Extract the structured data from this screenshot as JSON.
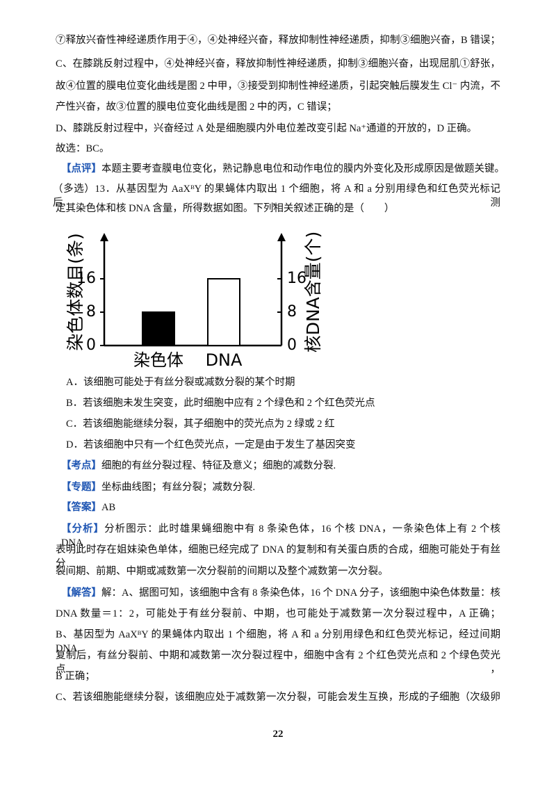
{
  "top_lines": [
    {
      "text": "⑦释放兴奋性神经递质作用于④，④处神经兴奋，释放抑制性神经递质，抑制③细胞兴奋，B 错误；"
    },
    {
      "text": "C、在膝跳反射过程中，④处神经兴奋，释放抑制性神经递质，抑制③细胞兴奋，出现屈肌①舒张，"
    },
    {
      "text": "故④位置的膜电位变化曲线是图 2 中甲，③接受到抑制性神经递质，引起突触后膜发生 Cl⁻ 内流，不"
    },
    {
      "text": "产性兴奋，故③位置的膜电位变化曲线是图 2 中的丙，C 错误；"
    },
    {
      "text": "D、膝跳反射过程中，兴奋经过 A 处是细胞膜内外电位差改变引起 Na⁺通道的开放的，D 正确。"
    },
    {
      "text": "故选：BC。"
    },
    {
      "label": "【点评】",
      "text": "本题主要考查膜电位变化，熟记静息电位和动作电位的膜内外变化及形成原因是做题关键。"
    },
    {
      "text": "（多选）13．从基因型为 AaXᴮY 的果蝇体内取出 1 个细胞，将 A 和 a 分别用绿色和红色荧光标记后，测"
    },
    {
      "text": "定其染色体和核 DNA 含量，所得数据如图。下列相关叙述正确的是（　　）"
    }
  ],
  "chart_data": {
    "type": "bar",
    "categories": [
      "染色体",
      "DNA"
    ],
    "values": [
      8,
      16
    ],
    "colors": [
      "#000000",
      "#ffffff"
    ],
    "ylabel": "染色体数目(条)",
    "y2label": "核DNA含量(个)",
    "ylim": [
      0,
      27
    ],
    "yticks": [
      0,
      8,
      16
    ],
    "y2lim": [
      0,
      27
    ],
    "y2ticks": [
      0,
      8,
      16
    ]
  },
  "bottom_lines": [
    {
      "text": "A．该细胞可能处于有丝分裂或减数分裂的某个时期"
    },
    {
      "text": "B．若该细胞未发生突变，此时细胞中应有 2 个绿色和 2 个红色荧光点"
    },
    {
      "text": "C．若该细胞能继续分裂，其子细胞中的荧光点为 2 绿或 2 红"
    },
    {
      "text": "D．若该细胞中只有一个红色荧光点，一定是由于发生了基因突变"
    },
    {
      "label": "【考点】",
      "text": "细胞的有丝分裂过程、特征及意义；细胞的减数分裂."
    },
    {
      "label": "【专题】",
      "text": "坐标曲线图；有丝分裂；减数分裂."
    },
    {
      "label": "【答案】",
      "text": "AB"
    },
    {
      "label": "【分析】",
      "text": "分析图示：此时雄果蝇细胞中有 8 条染色体，16 个核 DNA，一条染色体上有 2 个核 DNA，"
    },
    {
      "text": "表明此时存在姐妹染色单体，细胞已经完成了 DNA 的复制和有关蛋白质的合成，细胞可能处于有丝分"
    },
    {
      "text": "裂间期、前期、中期或减数第一次分裂前的间期以及整个减数第一次分裂。"
    },
    {
      "label": "【解答】",
      "text": "解：A、据图可知，该细胞中含有 8 条染色体，16 个 DNA 分子，该细胞中染色体数量：核"
    },
    {
      "text": "DNA 数量＝1：2，可能处于有丝分裂前、中期，也可能处于减数第一次分裂过程中，A 正确；"
    },
    {
      "text": "B、基因型为 AaXᴮY 的果蝇体内取出 1 个细胞，将 A 和 a 分别用绿色和红色荧光标记，经过间期 DNA"
    },
    {
      "text": "复制后，有丝分裂前、中期和减数第一次分裂过程中，细胞中含有 2 个红色荧光点和 2 个绿色荧光点，"
    },
    {
      "text": "B 正确；"
    },
    {
      "text": "C、若该细胞能继续分裂，该细胞应处于减数第一次分裂，可能会发生互换，形成的子细胞（次级卵"
    }
  ],
  "page_number": "22"
}
